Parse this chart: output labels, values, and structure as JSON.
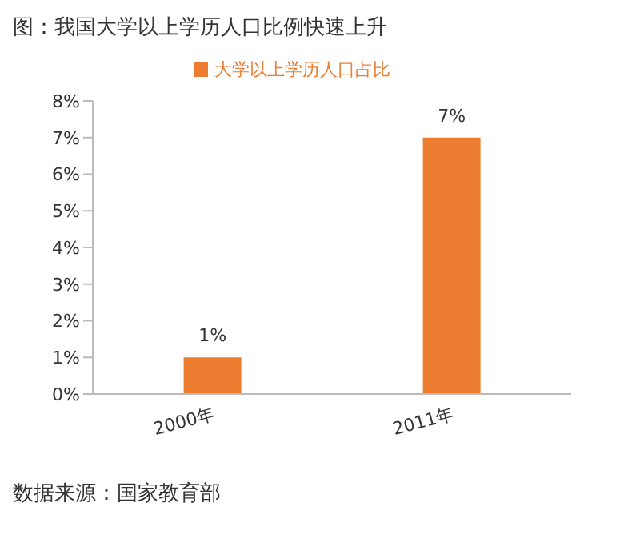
{
  "chart_data": {
    "type": "bar",
    "title": "图：我国大学以上学历人口比例快速上升",
    "categories": [
      "2000年",
      "2011年"
    ],
    "series": [
      {
        "name": "大学以上学历人口占比",
        "color": "#ed7d31",
        "values": [
          1,
          7
        ]
      }
    ],
    "value_labels": [
      "1%",
      "7%"
    ],
    "ylim": [
      0,
      8
    ],
    "yticks": [
      {
        "value": 0,
        "label": "0%"
      },
      {
        "value": 1,
        "label": "1%"
      },
      {
        "value": 2,
        "label": "2%"
      },
      {
        "value": 3,
        "label": "3%"
      },
      {
        "value": 4,
        "label": "4%"
      },
      {
        "value": 5,
        "label": "5%"
      },
      {
        "value": 6,
        "label": "6%"
      },
      {
        "value": 7,
        "label": "7%"
      },
      {
        "value": 8,
        "label": "8%"
      }
    ],
    "grid": false,
    "legend": "top",
    "annotations": [
      "数据来源：国家教育部"
    ]
  }
}
